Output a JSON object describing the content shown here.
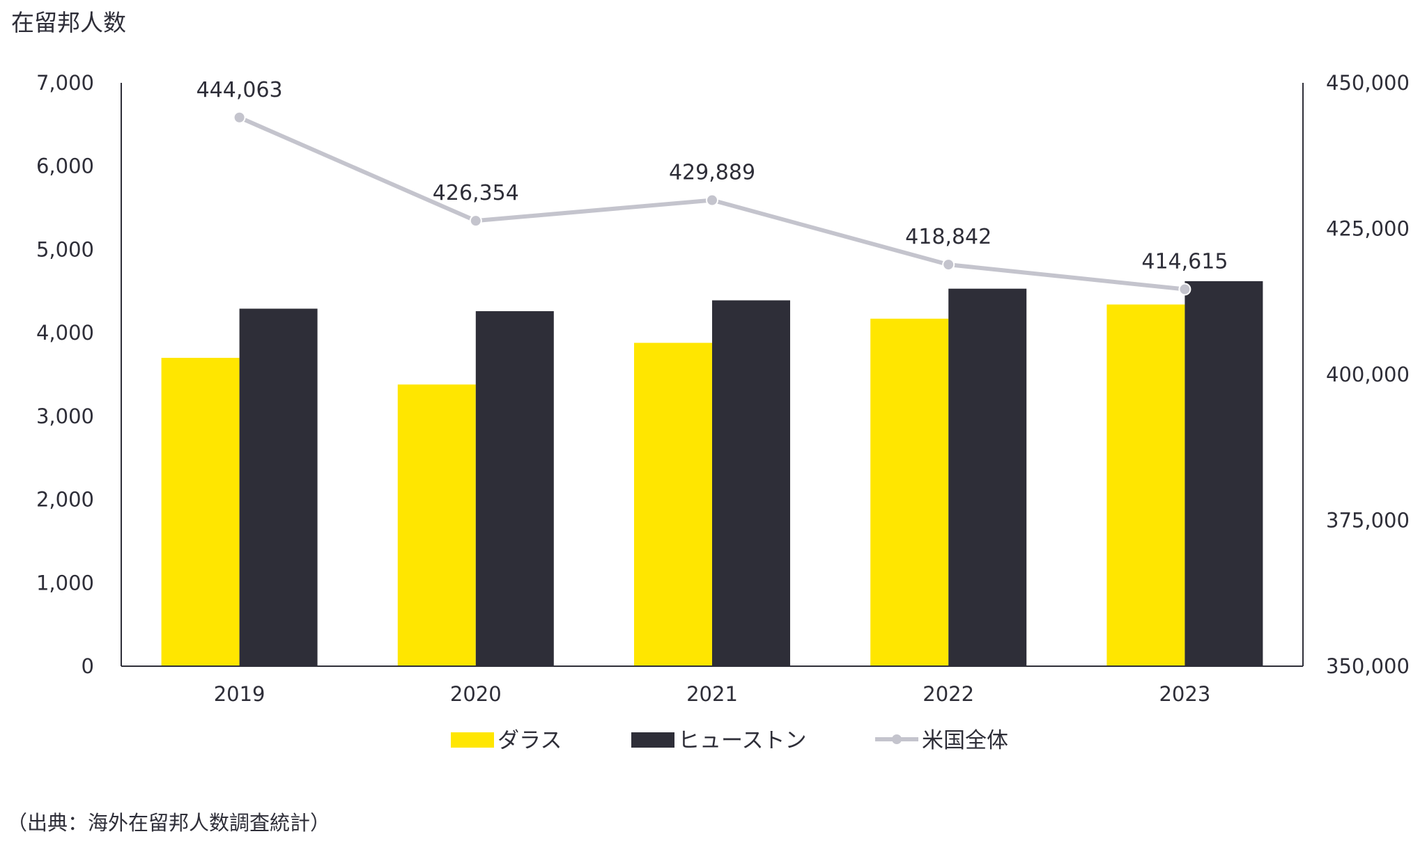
{
  "chart_data": {
    "type": "bar",
    "title": "在留邦人数",
    "source": "（出典：海外在留邦人数調査統計）",
    "categories": [
      "2019",
      "2020",
      "2021",
      "2022",
      "2023"
    ],
    "series": [
      {
        "name": "ダラス",
        "type": "bar",
        "axis": "left",
        "color": "#ffe600",
        "values": [
          3700,
          3380,
          3880,
          4170,
          4340
        ]
      },
      {
        "name": "ヒューストン",
        "type": "bar",
        "axis": "right",
        "axis_used": "left",
        "color": "#2e2e38",
        "values": [
          4290,
          4260,
          4390,
          4530,
          4620
        ]
      },
      {
        "name": "米国全体",
        "type": "line",
        "axis": "right",
        "color": "#c4c4cd",
        "values": [
          444063,
          426354,
          429889,
          418842,
          414615
        ],
        "labels": [
          "444,063",
          "426,354",
          "429,889",
          "418,842",
          "414,615"
        ]
      }
    ],
    "y_left": {
      "min": 0,
      "max": 7000,
      "ticks": [
        "0",
        "1,000",
        "2,000",
        "3,000",
        "4,000",
        "5,000",
        "6,000",
        "7,000"
      ]
    },
    "y_right": {
      "min": 350000,
      "max": 450000,
      "ticks": [
        "350,000",
        "375,000",
        "400,000",
        "425,000",
        "450,000"
      ]
    },
    "grid": false,
    "legend_position": "bottom"
  }
}
